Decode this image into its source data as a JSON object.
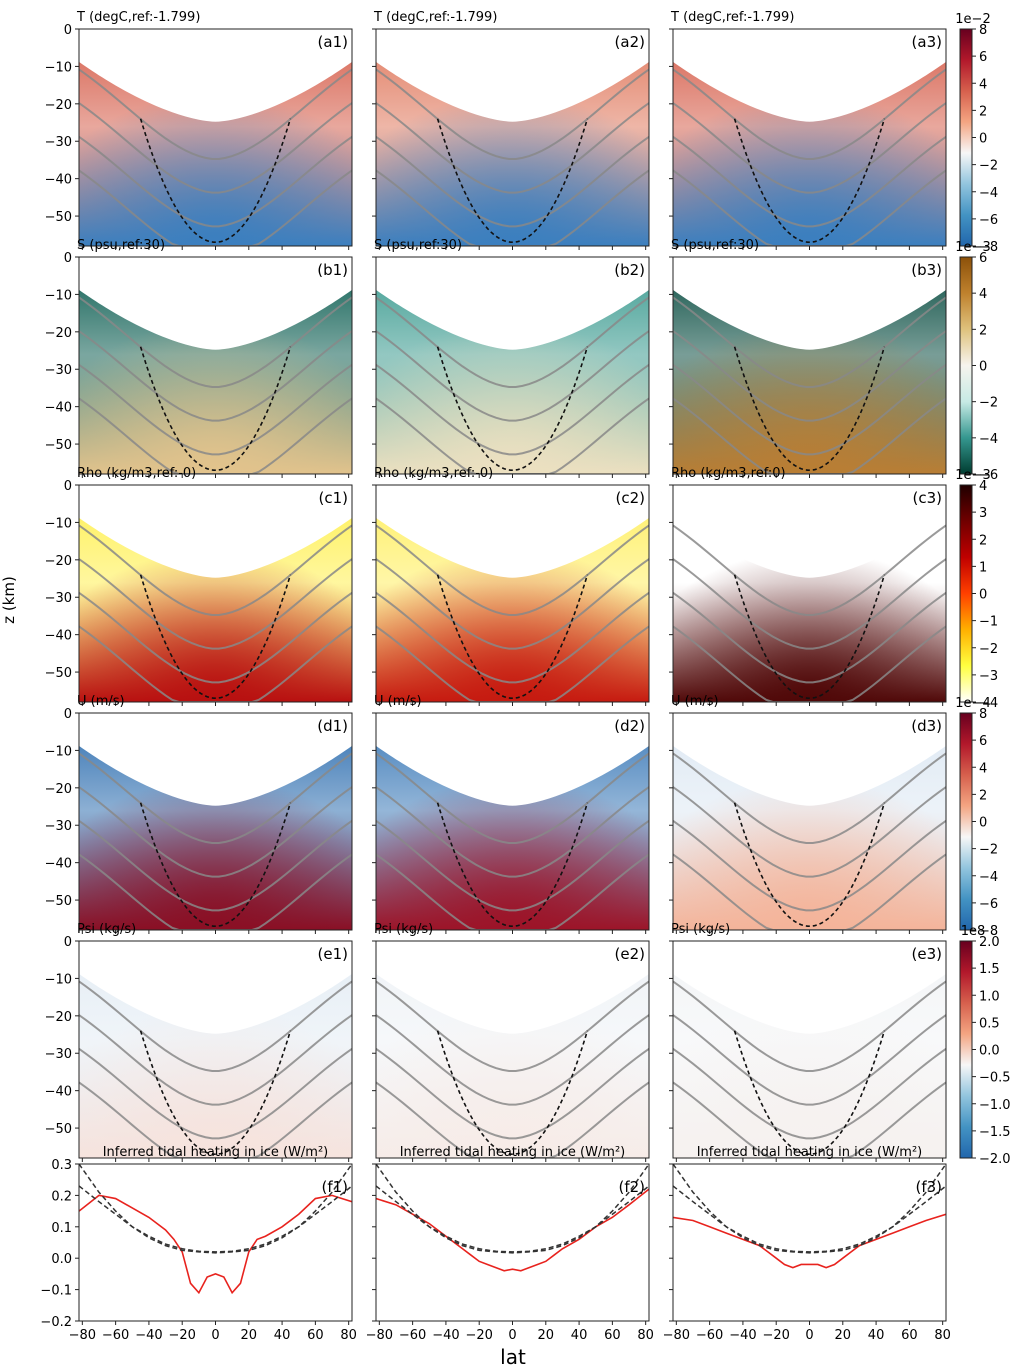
{
  "figure": {
    "ylabel": "z (km)",
    "xlabel": "lat"
  },
  "rows": [
    {
      "key": "T",
      "colormap": "RdBu_r",
      "colorbar": {
        "scale": "1e−2",
        "ticks": [
          "8",
          "6",
          "4",
          "2",
          "0",
          "−2",
          "−4",
          "−6",
          "−8"
        ]
      },
      "panels": [
        {
          "id": "(a1)",
          "title": "T (degC,ref:-1.799)"
        },
        {
          "id": "(a2)",
          "title": "T (degC,ref:-1.799)"
        },
        {
          "id": "(a3)",
          "title": "T (degC,ref:-1.799)"
        }
      ]
    },
    {
      "key": "S",
      "colormap": "BrBG",
      "colorbar": {
        "scale": "1e−3",
        "ticks": [
          "6",
          "4",
          "2",
          "0",
          "−2",
          "−4",
          "−6"
        ]
      },
      "panels": [
        {
          "id": "(b1)",
          "title": "S (psu,ref:30)"
        },
        {
          "id": "(b2)",
          "title": "S (psu,ref:30)"
        },
        {
          "id": "(b3)",
          "title": "S (psu,ref:30)"
        }
      ]
    },
    {
      "key": "Rho",
      "colormap": "hot_r",
      "colorbar": {
        "scale": "1e−3",
        "ticks": [
          "4",
          "3",
          "2",
          "1",
          "0",
          "−1",
          "−2",
          "−3",
          "−4"
        ]
      },
      "panels": [
        {
          "id": "(c1)",
          "title": "Rho (kg/m3,ref:-0)"
        },
        {
          "id": "(c2)",
          "title": "Rho (kg/m3,ref:-0)"
        },
        {
          "id": "(c3)",
          "title": "Rho (kg/m3,ref:0)"
        }
      ]
    },
    {
      "key": "U",
      "colormap": "RdBu_r",
      "colorbar": {
        "scale": "1e−4",
        "ticks": [
          "8",
          "6",
          "4",
          "2",
          "0",
          "−2",
          "−4",
          "−6",
          "−8"
        ]
      },
      "panels": [
        {
          "id": "(d1)",
          "title": "U (m/s)"
        },
        {
          "id": "(d2)",
          "title": "U (m/s)"
        },
        {
          "id": "(d3)",
          "title": "U (m/s)"
        }
      ]
    },
    {
      "key": "Psi",
      "colormap": "RdBu_r",
      "colorbar": {
        "scale": "1e8",
        "ticks": [
          "2.0",
          "1.5",
          "1.0",
          "0.5",
          "0.0",
          "−0.5",
          "−1.0",
          "−1.5",
          "−2.0"
        ]
      },
      "panels": [
        {
          "id": "(e1)",
          "title": "Psi (kg/s)"
        },
        {
          "id": "(e2)",
          "title": "Psi (kg/s)"
        },
        {
          "id": "(e3)",
          "title": "Psi (kg/s)"
        }
      ]
    }
  ],
  "z_axis": {
    "range": [
      -58,
      0
    ],
    "ticks": [
      0,
      -10,
      -20,
      -30,
      -40,
      -50
    ],
    "tick_labels": [
      "0",
      "−10",
      "−20",
      "−30",
      "−40",
      "−50"
    ]
  },
  "lat_axis": {
    "range": [
      -82,
      82
    ],
    "ticks": [
      -80,
      -60,
      -40,
      -20,
      0,
      20,
      40,
      60,
      80
    ],
    "tick_labels": [
      "−80",
      "−60",
      "−40",
      "−20",
      "0",
      "20",
      "40",
      "60",
      "80"
    ]
  },
  "chart_data": {
    "type": "line",
    "panels": [
      {
        "id": "(f1)",
        "title": "Inferred tidal heating in ice (W/m²)"
      },
      {
        "id": "(f2)",
        "title": "Inferred tidal heating in ice (W/m²)"
      },
      {
        "id": "(f3)",
        "title": "Inferred tidal heating in ice (W/m²)"
      }
    ],
    "ylim": [
      -0.2,
      0.3
    ],
    "xlim": [
      -82,
      82
    ],
    "yticks": [
      0.3,
      0.2,
      0.1,
      0.0,
      -0.1,
      -0.2
    ],
    "ytick_labels": [
      "0.3",
      "0.2",
      "0.1",
      "0.0",
      "−0.1",
      "−0.2"
    ],
    "xticks": [
      -80,
      -60,
      -40,
      -20,
      0,
      20,
      40,
      60,
      80
    ],
    "series": [
      {
        "color": "#e8231e",
        "style": "solid",
        "x": [
          -82,
          -70,
          -60,
          -50,
          -40,
          -30,
          -25,
          -20,
          -15,
          -10,
          -5,
          0,
          5,
          10,
          15,
          20,
          25,
          30,
          40,
          50,
          60,
          70,
          82
        ],
        "y_panels": [
          [
            0.15,
            0.2,
            0.19,
            0.16,
            0.13,
            0.09,
            0.06,
            0.02,
            -0.08,
            -0.11,
            -0.06,
            -0.05,
            -0.06,
            -0.11,
            -0.08,
            0.02,
            0.06,
            0.07,
            0.1,
            0.14,
            0.19,
            0.2,
            0.18
          ],
          [
            0.19,
            0.17,
            0.14,
            0.11,
            0.07,
            0.03,
            0.01,
            -0.01,
            -0.02,
            -0.03,
            -0.04,
            -0.035,
            -0.04,
            -0.03,
            -0.02,
            -0.01,
            0.01,
            0.03,
            0.06,
            0.1,
            0.13,
            0.17,
            0.22
          ],
          [
            0.13,
            0.12,
            0.1,
            0.08,
            0.06,
            0.04,
            0.02,
            0.0,
            -0.02,
            -0.03,
            -0.02,
            -0.02,
            -0.02,
            -0.03,
            -0.02,
            0.0,
            0.02,
            0.04,
            0.06,
            0.08,
            0.1,
            0.12,
            0.14
          ]
        ]
      },
      {
        "color": "#333333",
        "style": "dashed",
        "x": [
          -82,
          -70,
          -60,
          -50,
          -40,
          -30,
          -20,
          -10,
          0,
          10,
          20,
          30,
          40,
          50,
          60,
          70,
          82
        ],
        "y": [
          0.3,
          0.21,
          0.15,
          0.1,
          0.065,
          0.04,
          0.025,
          0.02,
          0.017,
          0.02,
          0.025,
          0.04,
          0.065,
          0.1,
          0.15,
          0.21,
          0.3
        ]
      },
      {
        "color": "#333333",
        "style": "dashed",
        "x": [
          -82,
          -70,
          -60,
          -50,
          -40,
          -30,
          -20,
          -10,
          0,
          10,
          20,
          30,
          40,
          50,
          60,
          70,
          82
        ],
        "y": [
          0.23,
          0.18,
          0.14,
          0.1,
          0.07,
          0.045,
          0.03,
          0.022,
          0.02,
          0.022,
          0.03,
          0.045,
          0.07,
          0.1,
          0.14,
          0.18,
          0.23
        ]
      }
    ]
  }
}
